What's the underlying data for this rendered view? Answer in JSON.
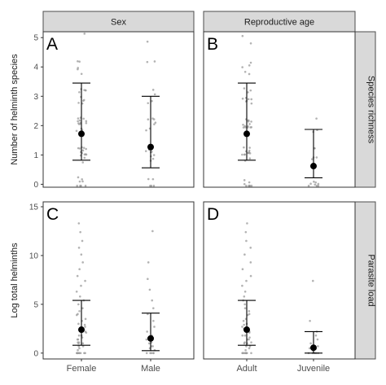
{
  "chart_data": {
    "type": "scatter",
    "description_free": true,
    "columns": [
      {
        "strip": "Sex",
        "categories": [
          "Female",
          "Male"
        ]
      },
      {
        "strip": "Reproductive age",
        "categories": [
          "Adult",
          "Juvenile"
        ]
      }
    ],
    "rows": [
      {
        "strip": "Species richness",
        "ylabel": "Number of helminth species",
        "ylim": [
          -0.1,
          5.2
        ],
        "yticks": [
          0,
          1,
          2,
          3,
          4,
          5
        ]
      },
      {
        "strip": "Parasite load",
        "ylabel": "Log total helminths",
        "ylim": [
          -0.6,
          15.5
        ],
        "yticks": [
          0,
          5,
          10,
          15
        ]
      }
    ],
    "panels": [
      {
        "letter": "A",
        "row": 0,
        "col": 0,
        "summary": [
          {
            "category": "Female",
            "mean": 1.72,
            "lower": 0.82,
            "upper": 3.45
          },
          {
            "category": "Male",
            "mean": 1.27,
            "lower": 0.56,
            "upper": 3.0
          }
        ],
        "points": [
          {
            "category": "Female",
            "values": [
              0,
              0,
              0,
              0,
              0,
              0,
              0,
              0,
              1,
              1,
              1,
              1,
              1,
              1,
              1,
              1,
              1,
              1,
              1,
              1,
              1,
              1,
              2,
              2,
              2,
              2,
              2,
              2,
              2,
              2,
              2,
              2,
              2,
              2,
              2,
              2,
              3,
              3,
              3,
              3,
              3,
              3,
              3,
              3,
              3,
              3,
              4,
              4,
              4,
              4,
              4,
              5
            ]
          },
          {
            "category": "Male",
            "values": [
              0,
              0,
              0,
              0,
              0,
              1,
              1,
              1,
              1,
              1,
              1,
              1,
              1,
              1,
              1,
              2,
              2,
              2,
              2,
              2,
              2,
              2,
              3,
              3,
              3,
              3,
              4,
              4,
              5
            ]
          }
        ]
      },
      {
        "letter": "B",
        "row": 0,
        "col": 1,
        "summary": [
          {
            "category": "Adult",
            "mean": 1.72,
            "lower": 0.82,
            "upper": 3.45
          },
          {
            "category": "Juvenile",
            "mean": 0.62,
            "lower": 0.22,
            "upper": 1.87
          }
        ],
        "points": [
          {
            "category": "Adult",
            "values": [
              0,
              0,
              0,
              0,
              0,
              0,
              0,
              0,
              1,
              1,
              1,
              1,
              1,
              1,
              1,
              1,
              1,
              1,
              1,
              1,
              1,
              1,
              2,
              2,
              2,
              2,
              2,
              2,
              2,
              2,
              2,
              2,
              2,
              2,
              2,
              2,
              3,
              3,
              3,
              3,
              3,
              3,
              3,
              3,
              3,
              3,
              4,
              4,
              4,
              4,
              4,
              5,
              5
            ]
          },
          {
            "category": "Juvenile",
            "values": [
              0,
              0,
              0,
              0,
              0,
              0,
              0,
              0,
              1,
              1,
              1,
              1,
              1,
              2,
              2,
              2
            ]
          }
        ]
      },
      {
        "letter": "C",
        "row": 1,
        "col": 0,
        "summary": [
          {
            "category": "Female",
            "mean": 2.4,
            "lower": 0.8,
            "upper": 5.4
          },
          {
            "category": "Male",
            "mean": 1.5,
            "lower": 0.25,
            "upper": 4.1
          }
        ],
        "points": [
          {
            "category": "Female",
            "values": [
              0,
              0,
              0,
              0,
              0,
              0,
              0,
              0,
              0,
              0.3,
              0.5,
              0.7,
              0.7,
              1,
              1,
              1.1,
              1.1,
              1.4,
              1.4,
              1.6,
              1.8,
              1.8,
              2.1,
              2.2,
              2.2,
              2.5,
              2.7,
              2.9,
              3,
              3.3,
              3.5,
              3.9,
              4,
              4.3,
              4.6,
              5,
              5.4,
              5.8,
              6.3,
              6.9,
              7.4,
              7.9,
              8.6,
              9.3,
              10.1,
              10.8,
              11.5,
              12.4,
              13.3
            ]
          },
          {
            "category": "Male",
            "values": [
              0,
              0,
              0,
              0,
              0,
              0.3,
              0.5,
              0.7,
              0.7,
              1,
              1.1,
              1.4,
              1.6,
              1.8,
              2.2,
              2.7,
              3.3,
              4,
              4.6,
              5.4,
              6.5,
              7.6,
              9.3,
              12.5
            ]
          }
        ]
      },
      {
        "letter": "D",
        "row": 1,
        "col": 1,
        "summary": [
          {
            "category": "Adult",
            "mean": 2.4,
            "lower": 0.8,
            "upper": 5.4
          },
          {
            "category": "Juvenile",
            "mean": 0.55,
            "lower": 0.0,
            "upper": 2.2
          }
        ],
        "points": [
          {
            "category": "Adult",
            "values": [
              0,
              0,
              0,
              0,
              0,
              0,
              0,
              0,
              0,
              0.3,
              0.5,
              0.7,
              0.7,
              1,
              1,
              1.1,
              1.1,
              1.4,
              1.4,
              1.6,
              1.8,
              1.8,
              2.1,
              2.2,
              2.2,
              2.5,
              2.7,
              2.9,
              3,
              3.3,
              3.5,
              3.9,
              4,
              4.3,
              4.6,
              5,
              5.4,
              5.8,
              6.3,
              6.9,
              7.4,
              7.9,
              8.6,
              9.3,
              10.1,
              10.8,
              11.5,
              12.4,
              13.3
            ]
          },
          {
            "category": "Juvenile",
            "values": [
              0,
              0,
              0,
              0,
              0,
              0,
              0.3,
              0.5,
              0.7,
              1,
              1.4,
              1.8,
              2.2,
              3.3,
              7.4
            ]
          }
        ]
      }
    ]
  },
  "colors": {
    "points": "#9a9a9a",
    "summary": "#000000",
    "strip_fill": "#d9d9d9",
    "strip_border": "#4d4d4d",
    "panel_border": "#333333"
  }
}
